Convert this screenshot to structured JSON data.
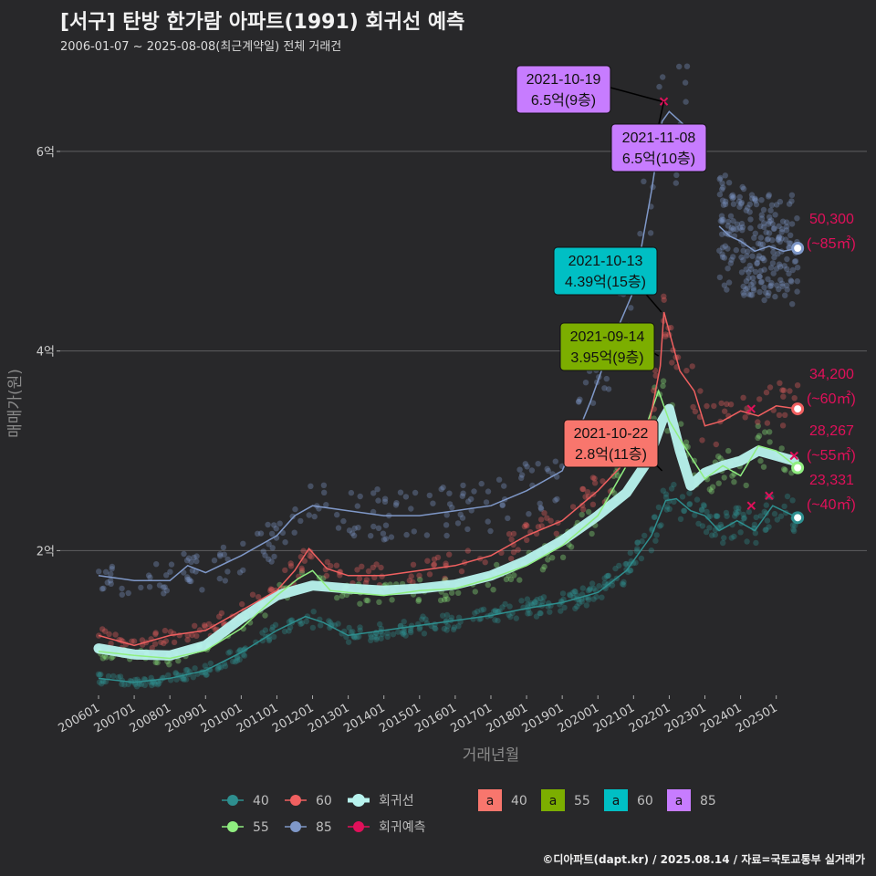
{
  "header": {
    "title": "[서구] 탄방 한가람 아파트(1991) 회귀선 예측",
    "subtitle": "2006-01-07 ~ 2025-08-08(최근계약일) 전체 거래건"
  },
  "footer": "©디아파트(dapt.kr) / 2025.08.14 / 자료=국토교통부 실거래가",
  "chart_data": {
    "type": "line",
    "xlabel": "거래년월",
    "ylabel": "매매가(원)",
    "x_range": [
      2006.0,
      2025.75
    ],
    "ylim": [
      0.55,
      6.95
    ],
    "y_ticks": [
      {
        "v": 2,
        "label": "2억"
      },
      {
        "v": 4,
        "label": "4억"
      },
      {
        "v": 6,
        "label": "6억"
      }
    ],
    "x_ticks": [
      "200601",
      "200701",
      "200801",
      "200901",
      "201001",
      "201101",
      "201201",
      "201301",
      "201401",
      "201501",
      "201601",
      "201701",
      "201801",
      "201901",
      "202001",
      "202101",
      "202201",
      "202301",
      "202401",
      "202501"
    ],
    "colors": {
      "s40": "#2e8f8f",
      "s55": "#90ee80",
      "s60": "#f06060",
      "s85": "#7f98c8",
      "regression": "#b8f3ee",
      "forecast": "#e0105a"
    },
    "series": [
      {
        "name": "40",
        "key": "s40",
        "points": [
          [
            2006.0,
            0.72
          ],
          [
            2007.0,
            0.68
          ],
          [
            2008.0,
            0.72
          ],
          [
            2009.0,
            0.8
          ],
          [
            2010.0,
            0.98
          ],
          [
            2011.0,
            1.2
          ],
          [
            2011.8,
            1.34
          ],
          [
            2012.3,
            1.28
          ],
          [
            2013.0,
            1.15
          ],
          [
            2014.0,
            1.2
          ],
          [
            2015.0,
            1.25
          ],
          [
            2016.0,
            1.3
          ],
          [
            2017.0,
            1.35
          ],
          [
            2018.0,
            1.42
          ],
          [
            2019.0,
            1.48
          ],
          [
            2020.0,
            1.58
          ],
          [
            2020.8,
            1.8
          ],
          [
            2021.5,
            2.15
          ],
          [
            2021.9,
            2.5
          ],
          [
            2022.2,
            2.52
          ],
          [
            2022.6,
            2.4
          ],
          [
            2023.0,
            2.35
          ],
          [
            2023.4,
            2.2
          ],
          [
            2023.9,
            2.3
          ],
          [
            2024.4,
            2.2
          ],
          [
            2024.9,
            2.45
          ],
          [
            2025.6,
            2.33
          ]
        ]
      },
      {
        "name": "55",
        "key": "s55",
        "points": [
          [
            2006.0,
            0.99
          ],
          [
            2007.0,
            0.95
          ],
          [
            2008.0,
            0.92
          ],
          [
            2009.0,
            1.0
          ],
          [
            2010.0,
            1.22
          ],
          [
            2011.0,
            1.55
          ],
          [
            2011.6,
            1.72
          ],
          [
            2012.0,
            1.8
          ],
          [
            2012.5,
            1.6
          ],
          [
            2013.0,
            1.58
          ],
          [
            2014.0,
            1.55
          ],
          [
            2015.0,
            1.6
          ],
          [
            2016.0,
            1.62
          ],
          [
            2017.0,
            1.72
          ],
          [
            2018.0,
            1.85
          ],
          [
            2019.0,
            2.05
          ],
          [
            2020.0,
            2.35
          ],
          [
            2020.8,
            2.85
          ],
          [
            2021.4,
            3.3
          ],
          [
            2021.7,
            3.6
          ],
          [
            2022.0,
            3.3
          ],
          [
            2022.5,
            3.0
          ],
          [
            2023.0,
            2.72
          ],
          [
            2023.5,
            2.85
          ],
          [
            2024.0,
            2.75
          ],
          [
            2024.5,
            3.05
          ],
          [
            2025.0,
            3.0
          ],
          [
            2025.6,
            2.83
          ]
        ]
      },
      {
        "name": "60",
        "key": "s60",
        "points": [
          [
            2006.0,
            1.15
          ],
          [
            2007.0,
            1.05
          ],
          [
            2008.0,
            1.15
          ],
          [
            2009.0,
            1.2
          ],
          [
            2010.0,
            1.4
          ],
          [
            2011.0,
            1.6
          ],
          [
            2011.5,
            1.8
          ],
          [
            2011.9,
            2.02
          ],
          [
            2012.4,
            1.82
          ],
          [
            2013.0,
            1.75
          ],
          [
            2014.0,
            1.75
          ],
          [
            2015.0,
            1.8
          ],
          [
            2016.0,
            1.85
          ],
          [
            2017.0,
            1.95
          ],
          [
            2018.0,
            2.15
          ],
          [
            2019.0,
            2.3
          ],
          [
            2020.0,
            2.6
          ],
          [
            2020.8,
            2.9
          ],
          [
            2021.4,
            3.2
          ],
          [
            2021.75,
            3.85
          ],
          [
            2021.85,
            4.39
          ],
          [
            2022.3,
            3.8
          ],
          [
            2022.7,
            3.6
          ],
          [
            2023.0,
            3.25
          ],
          [
            2023.5,
            3.3
          ],
          [
            2024.0,
            3.4
          ],
          [
            2024.5,
            3.35
          ],
          [
            2025.0,
            3.45
          ],
          [
            2025.6,
            3.42
          ]
        ]
      },
      {
        "name": "85",
        "key": "s85",
        "points": [
          [
            2006.0,
            1.75
          ],
          [
            2007.0,
            1.7
          ],
          [
            2008.0,
            1.7
          ],
          [
            2008.5,
            1.85
          ],
          [
            2009.0,
            1.78
          ],
          [
            2010.0,
            1.95
          ],
          [
            2011.0,
            2.15
          ],
          [
            2011.5,
            2.35
          ],
          [
            2012.0,
            2.45
          ],
          [
            2013.0,
            2.4
          ],
          [
            2014.0,
            2.35
          ],
          [
            2015.0,
            2.35
          ],
          [
            2016.0,
            2.4
          ],
          [
            2017.0,
            2.45
          ],
          [
            2018.0,
            2.6
          ],
          [
            2019.0,
            2.8
          ],
          [
            2019.8,
            3.5
          ],
          [
            2020.4,
            4.1
          ],
          [
            2021.0,
            4.6
          ],
          [
            2021.5,
            5.6
          ],
          [
            2021.8,
            6.3
          ],
          [
            2022.0,
            6.4
          ],
          [
            2022.4,
            6.27
          ],
          [
            2022.7,
            6.27
          ]
        ]
      },
      {
        "name": "85",
        "key": "s85",
        "points": [
          [
            2023.4,
            5.25
          ],
          [
            2023.7,
            5.15
          ],
          [
            2024.0,
            5.1
          ],
          [
            2024.4,
            5.0
          ],
          [
            2024.8,
            5.05
          ],
          [
            2025.2,
            5.0
          ],
          [
            2025.6,
            5.03
          ]
        ]
      }
    ],
    "regression": {
      "name": "회귀선",
      "points": [
        [
          2006.0,
          1.02
        ],
        [
          2007.0,
          0.96
        ],
        [
          2008.0,
          0.95
        ],
        [
          2009.0,
          1.05
        ],
        [
          2010.0,
          1.32
        ],
        [
          2011.0,
          1.55
        ],
        [
          2012.0,
          1.65
        ],
        [
          2013.0,
          1.62
        ],
        [
          2014.0,
          1.6
        ],
        [
          2015.0,
          1.62
        ],
        [
          2016.0,
          1.66
        ],
        [
          2017.0,
          1.75
        ],
        [
          2018.0,
          1.9
        ],
        [
          2019.0,
          2.1
        ],
        [
          2020.0,
          2.35
        ],
        [
          2020.8,
          2.58
        ],
        [
          2021.4,
          2.9
        ],
        [
          2021.8,
          3.3
        ],
        [
          2022.0,
          3.42
        ],
        [
          2022.3,
          3.0
        ],
        [
          2022.6,
          2.65
        ],
        [
          2023.0,
          2.78
        ],
        [
          2023.5,
          2.85
        ],
        [
          2024.0,
          2.9
        ],
        [
          2024.5,
          3.0
        ],
        [
          2025.0,
          2.95
        ],
        [
          2025.5,
          2.9
        ]
      ]
    },
    "forecast_marks": [
      [
        2021.85,
        6.5
      ],
      [
        2024.3,
        3.42
      ],
      [
        2024.3,
        2.45
      ],
      [
        2024.8,
        2.55
      ],
      [
        2025.5,
        2.95
      ]
    ],
    "end_labels": [
      {
        "series": "85",
        "key": "s85",
        "x": 2025.6,
        "y": 5.03,
        "value": "50,300",
        "size": "(~85㎡)"
      },
      {
        "series": "60",
        "key": "s60",
        "x": 2025.6,
        "y": 3.42,
        "value": "34,200",
        "size": "(~60㎡)"
      },
      {
        "series": "55",
        "key": "s55",
        "x": 2025.6,
        "y": 2.83,
        "value": "28,267",
        "size": "(~55㎡)"
      },
      {
        "series": "40",
        "key": "s40",
        "x": 2025.6,
        "y": 2.33,
        "value": "23,331",
        "size": "(~40㎡)"
      }
    ],
    "callouts": [
      {
        "date": "2021-10-19",
        "price": "6.5억(9층)",
        "bg": "#c77cff",
        "x": 2021.8,
        "y": 6.5
      },
      {
        "date": "2021-11-08",
        "price": "6.5억(10층)",
        "bg": "#c77cff",
        "x": 2021.85,
        "y": 6.5
      },
      {
        "date": "2021-10-13",
        "price": "4.39억(15층)",
        "bg": "#00bfc4",
        "x": 2021.78,
        "y": 4.39
      },
      {
        "date": "2021-09-14",
        "price": "3.95억(9층)",
        "bg": "#7cae00",
        "x": 2021.7,
        "y": 3.95
      },
      {
        "date": "2021-10-22",
        "price": "2.8억(11층)",
        "bg": "#f8766d",
        "x": 2021.8,
        "y": 2.8
      }
    ],
    "legend": {
      "sizes": [
        "40",
        "60",
        "55",
        "85"
      ],
      "regression_label": "회귀선",
      "forecast_label": "회귀예측",
      "max_label_glyph": "a",
      "max_items": [
        {
          "label": "40",
          "color": "#f8766d"
        },
        {
          "label": "55",
          "color": "#7cae00"
        },
        {
          "label": "60",
          "color": "#00bfc4"
        },
        {
          "label": "85",
          "color": "#c77cff"
        }
      ]
    }
  }
}
